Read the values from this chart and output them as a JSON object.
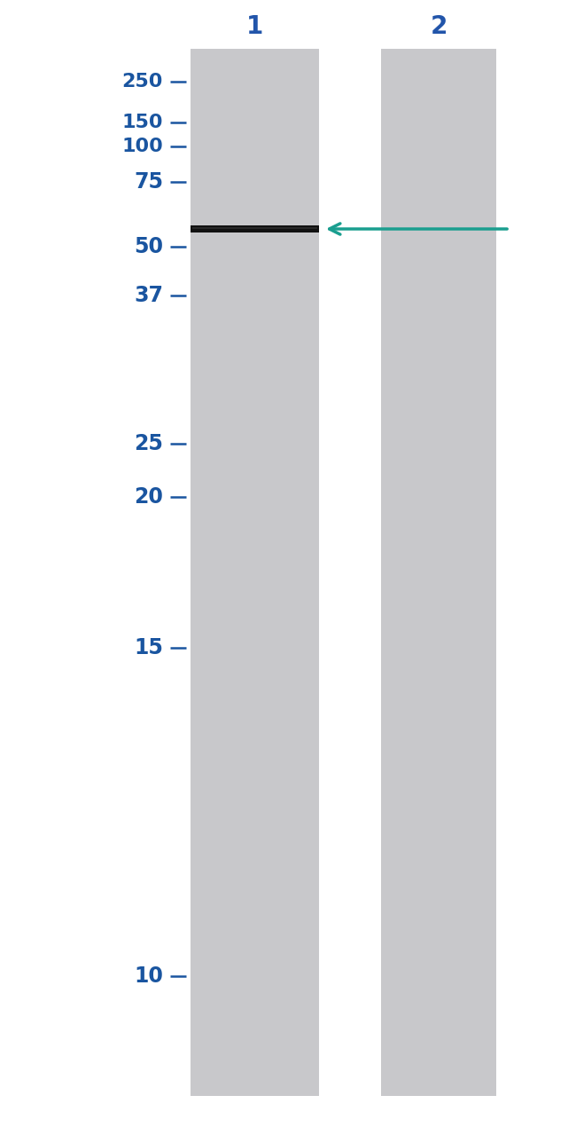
{
  "background_color": "#ffffff",
  "gel_color": "#c8c8cb",
  "band_color": "#111111",
  "lane_label_color": "#2255aa",
  "marker_color": "#1a55a0",
  "tick_color": "#1a55a0",
  "arrow_color": "#1a9e8f",
  "marker_labels": [
    "250",
    "150",
    "100",
    "75",
    "50",
    "37",
    "25",
    "20",
    "15",
    "10"
  ],
  "marker_values": [
    250,
    150,
    100,
    75,
    50,
    37,
    25,
    20,
    15,
    10
  ],
  "band_mw": 57,
  "lane1_label": "1",
  "lane2_label": "2",
  "fig_width": 6.5,
  "fig_height": 12.7
}
